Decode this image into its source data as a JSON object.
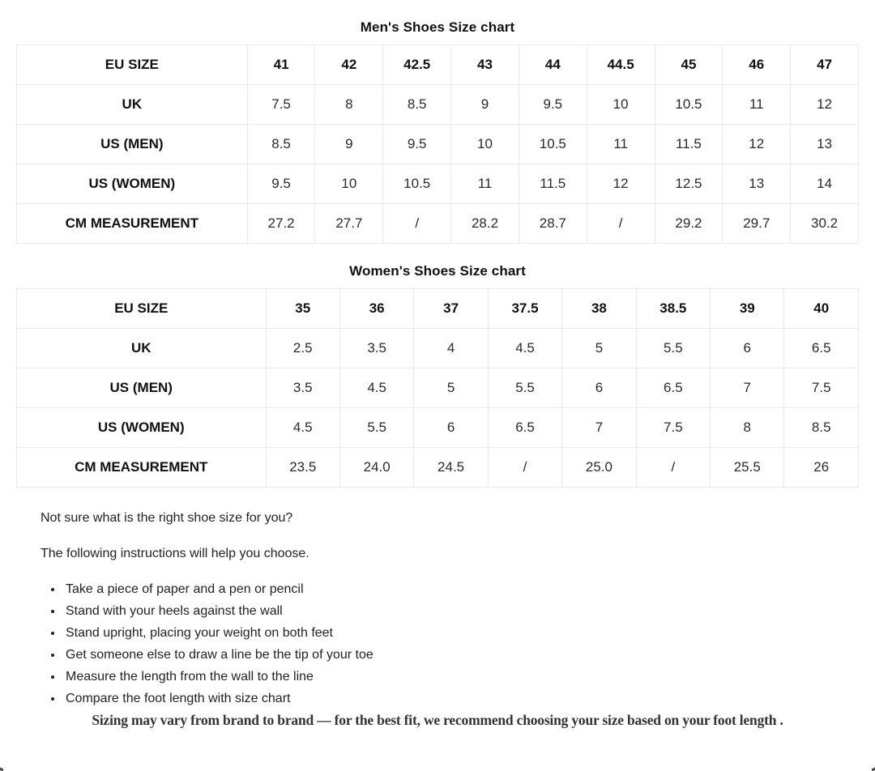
{
  "colors": {
    "table_border": "#e9e9e9",
    "text_primary": "#212121",
    "note_text": "#333333"
  },
  "mens_chart": {
    "title": "Men's Shoes Size chart",
    "rows": [
      {
        "label": "EU SIZE",
        "values": [
          "41",
          "42",
          "42.5",
          "43",
          "44",
          "44.5",
          "45",
          "46",
          "47"
        ]
      },
      {
        "label": "UK",
        "values": [
          "7.5",
          "8",
          "8.5",
          "9",
          "9.5",
          "10",
          "10.5",
          "11",
          "12"
        ]
      },
      {
        "label": "US (MEN)",
        "values": [
          "8.5",
          "9",
          "9.5",
          "10",
          "10.5",
          "11",
          "11.5",
          "12",
          "13"
        ]
      },
      {
        "label": "US (WOMEN)",
        "values": [
          "9.5",
          "10",
          "10.5",
          "11",
          "11.5",
          "12",
          "12.5",
          "13",
          "14"
        ]
      },
      {
        "label": "CM MEASUREMENT",
        "values": [
          "27.2",
          "27.7",
          "/",
          "28.2",
          "28.7",
          "/",
          "29.2",
          "29.7",
          "30.2"
        ]
      }
    ]
  },
  "womens_chart": {
    "title": "Women's Shoes Size chart",
    "rows": [
      {
        "label": "EU SIZE",
        "values": [
          "35",
          "36",
          "37",
          "37.5",
          "38",
          "38.5",
          "39",
          "40"
        ]
      },
      {
        "label": "UK",
        "values": [
          "2.5",
          "3.5",
          "4",
          "4.5",
          "5",
          "5.5",
          "6",
          "6.5"
        ]
      },
      {
        "label": "US (MEN)",
        "values": [
          "3.5",
          "4.5",
          "5",
          "5.5",
          "6",
          "6.5",
          "7",
          "7.5"
        ]
      },
      {
        "label": "US (WOMEN)",
        "values": [
          "4.5",
          "5.5",
          "6",
          "6.5",
          "7",
          "7.5",
          "8",
          "8.5"
        ]
      },
      {
        "label": "CM MEASUREMENT",
        "values": [
          "23.5",
          "24.0",
          "24.5",
          "/",
          "25.0",
          "/",
          "25.5",
          "26"
        ]
      }
    ]
  },
  "guide": {
    "question": "Not sure what is the right shoe size for you?",
    "intro": "The following instructions will help you choose.",
    "steps": [
      "Take a piece of paper and a pen or pencil",
      "Stand with your heels against the wall",
      "Stand upright, placing your weight on both feet",
      "Get someone else to draw a line be the tip of your toe",
      "Measure the length from the wall to the line",
      "Compare the foot length with size chart"
    ],
    "note": "Sizing may vary from brand to brand — for the best fit, we recommend choosing your size based on your foot length ."
  }
}
